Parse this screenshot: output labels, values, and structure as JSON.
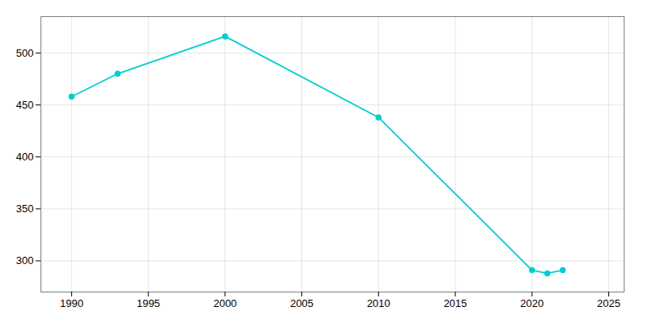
{
  "chart_data": {
    "type": "line",
    "x": [
      1990,
      1993,
      2000,
      2010,
      2020,
      2021,
      2022
    ],
    "values": [
      458,
      480,
      516,
      438,
      291,
      288,
      291
    ],
    "color": "#00CED1",
    "marker": "circle",
    "xlim": [
      1988,
      2026
    ],
    "ylim": [
      270,
      535
    ],
    "xticks": [
      1990,
      1995,
      2000,
      2005,
      2010,
      2015,
      2020,
      2025
    ],
    "yticks": [
      300,
      350,
      400,
      450,
      500
    ],
    "grid": true
  }
}
